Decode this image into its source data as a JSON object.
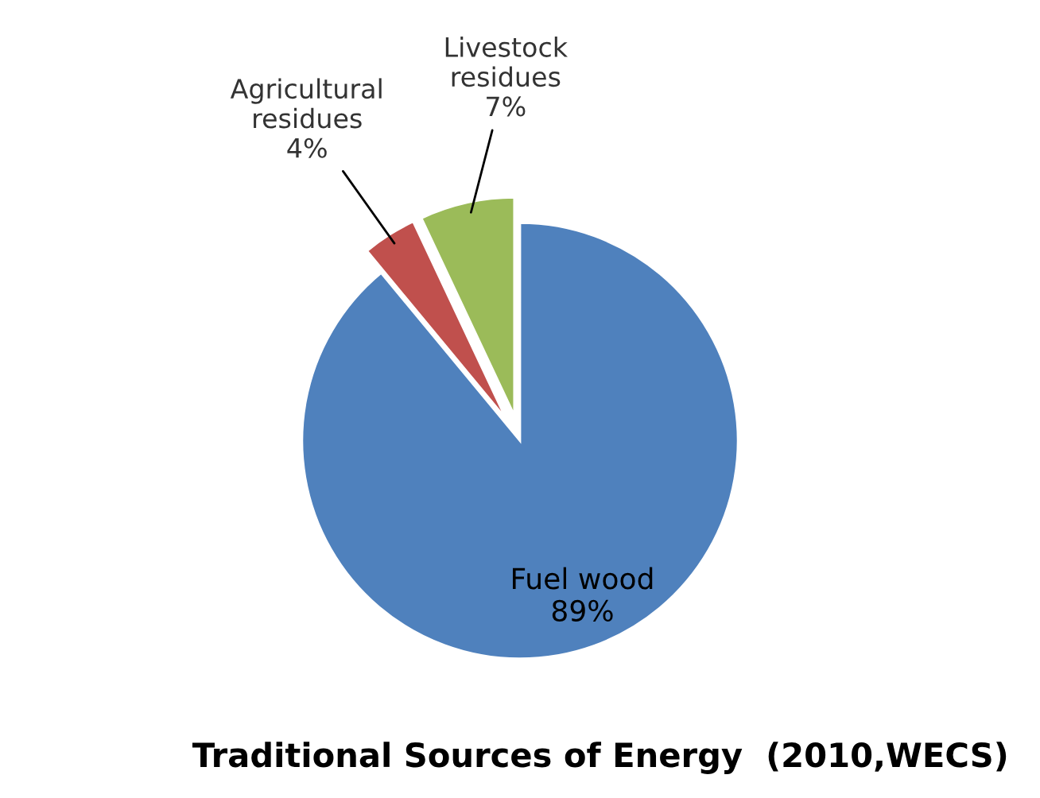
{
  "chart_data": {
    "type": "pie",
    "title": "Traditional Sources of Energy  (2010,WECS)",
    "categories": [
      "Fuel wood",
      "Agricultural\nresidues",
      "Livestock\nresidues"
    ],
    "values": [
      89,
      4,
      7
    ],
    "value_labels": [
      "89%",
      "4%",
      "7%"
    ],
    "colors": [
      "#4f81bd",
      "#c0504d",
      "#9bbb59"
    ]
  }
}
